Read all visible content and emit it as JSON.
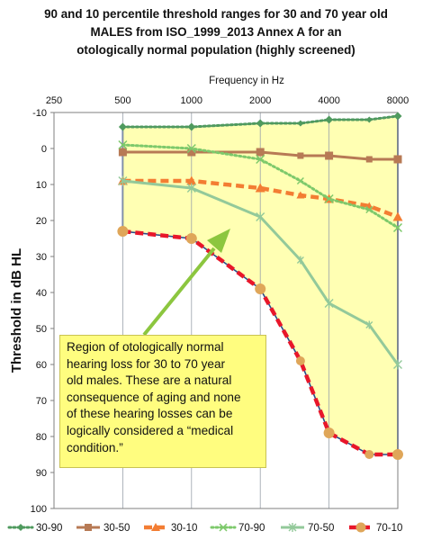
{
  "chart_data": {
    "type": "line",
    "title": "90 and 10 percentile threshold ranges for 30 and 70 year old MALES from ISO_1999_2013 Annex A  for an otologically normal population (highly screened)",
    "title_lines": [
      "90 and 10 percentile threshold ranges for 30 and 70 year old",
      "MALES from ISO_1999_2013 Annex A  for an",
      "otologically normal population (highly screened)"
    ],
    "xlabel": "Frequency in Hz",
    "ylabel": "Threshold in dB HL",
    "x_scale": "log",
    "x_ticks": [
      250,
      500,
      1000,
      2000,
      4000,
      8000
    ],
    "x_tick_labels": [
      "250",
      "500",
      "1000",
      "2000",
      "4000",
      "8000"
    ],
    "y_ticks": [
      -10,
      0,
      10,
      20,
      30,
      40,
      50,
      60,
      70,
      80,
      90,
      100
    ],
    "y_tick_labels": [
      "-10",
      "0",
      "10",
      "20",
      "30",
      "40",
      "50",
      "60",
      "70",
      "80",
      "90",
      "100"
    ],
    "ylim": [
      100,
      -10
    ],
    "y_inverted": true,
    "grid": "vertical",
    "legend_position": "bottom",
    "x": [
      500,
      1000,
      2000,
      3000,
      4000,
      6000,
      8000
    ],
    "series": [
      {
        "name": "30-90",
        "color": "#4f9a5e",
        "style": "dotted",
        "marker": "diamond",
        "values": [
          -6,
          -6,
          -7,
          -7,
          -8,
          -8,
          -9
        ]
      },
      {
        "name": "30-50",
        "color": "#b77a55",
        "style": "solid",
        "marker": "square",
        "values": [
          1,
          1,
          1,
          2,
          2,
          3,
          3
        ]
      },
      {
        "name": "30-10",
        "color": "#f37d33",
        "style": "dashed",
        "marker": "triangle",
        "values": [
          9,
          9,
          11,
          13,
          14,
          16,
          19
        ]
      },
      {
        "name": "70-90",
        "color": "#7dc96b",
        "style": "dotted",
        "marker": "x",
        "values": [
          -1,
          0,
          3,
          9,
          14,
          17,
          22
        ]
      },
      {
        "name": "70-50",
        "color": "#93c99a",
        "style": "solid",
        "marker": "star",
        "values": [
          9,
          11,
          19,
          31,
          43,
          49,
          60
        ]
      },
      {
        "name": "70-10",
        "color": "#e8162a",
        "style": "dashed",
        "marker": "circle",
        "values": [
          23,
          25,
          39,
          59,
          79,
          85,
          85
        ]
      }
    ],
    "region": {
      "fill": "#ffffb3",
      "border": "#2b4a8a",
      "top_boundary": [
        -6,
        -6,
        -7,
        -7,
        -8,
        -8,
        -9
      ],
      "bottom_boundary": [
        23,
        25,
        39,
        59,
        79,
        85,
        85
      ]
    },
    "annotation": {
      "text": "Region of otologically  normal hearing loss for 30 to 70 year old males.  These are a natural consequence of aging and none of these hearing losses can be logically considered  a “medical condition.”",
      "lines": [
        "Region of otologically  normal",
        "hearing loss for 30 to 70 year",
        "old males.  These are a natural",
        "consequence of aging and none",
        "of these hearing losses can be",
        "logically considered  a “medical",
        "condition.”"
      ],
      "background": "#fffd7f",
      "arrow_color": "#8cc63f"
    }
  }
}
